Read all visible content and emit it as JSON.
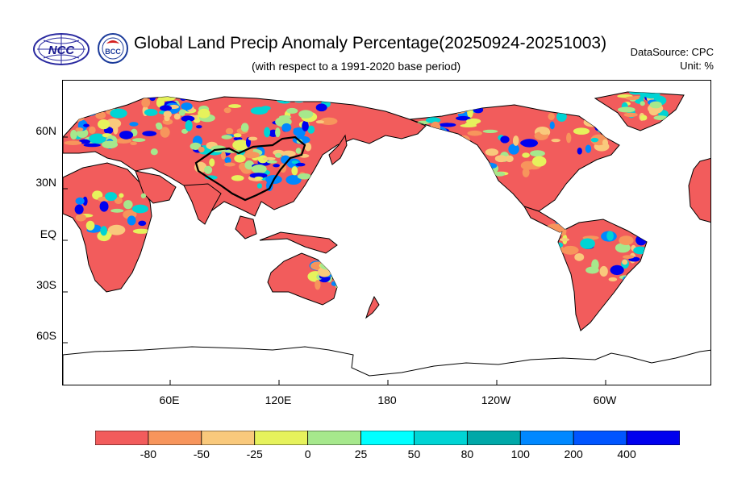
{
  "header": {
    "title": "Global Land Precip Anomaly Percentage(20250924-20251003)",
    "subtitle": "(with respect to a 1991-2020 base period)",
    "datasource": "DataSource:  CPC",
    "unit": "Unit:  %"
  },
  "logos": {
    "ncc_text": "NCC",
    "bcc_text": "BCC"
  },
  "axes": {
    "lat_labels": [
      "60N",
      "30N",
      "EQ",
      "30S",
      "60S"
    ],
    "lon_labels": [
      "60E",
      "120E",
      "180",
      "120W",
      "60W"
    ]
  },
  "colorbar": {
    "colors": [
      "#f25c5c",
      "#f7955c",
      "#f9c97c",
      "#e6f25c",
      "#a6e88c",
      "#00ffff",
      "#00d4d4",
      "#00a8a8",
      "#0088ff",
      "#0055ff",
      "#0000ee"
    ],
    "labels": [
      "-80",
      "-50",
      "-25",
      "0",
      "25",
      "50",
      "80",
      "100",
      "200",
      "400"
    ]
  },
  "map_palette": {
    "dry": "#f25c5c",
    "dry2": "#f7955c",
    "mid": "#f9c97c",
    "neutral": "#e6f25c",
    "wet1": "#a6e88c",
    "wet2": "#00d4d4",
    "wet3": "#0088ff",
    "wet4": "#0000ee",
    "coast": "#000000"
  }
}
